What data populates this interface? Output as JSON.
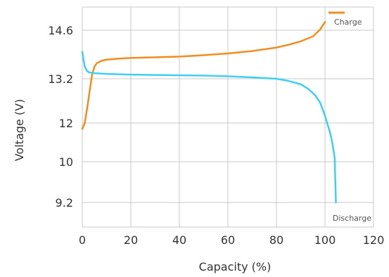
{
  "chart_data": {
    "type": "line",
    "xlabel": "Capacity (%)",
    "ylabel": "Voltage (V)",
    "xlim": [
      0,
      120
    ],
    "x_ticks": [
      0,
      20,
      40,
      60,
      80,
      100,
      120
    ],
    "x_tick_labels": [
      "0",
      "20",
      "40",
      "60",
      "80",
      "100",
      "120"
    ],
    "y_ticks": [
      9.2,
      10,
      12,
      13.2,
      14.6
    ],
    "y_tick_labels": [
      "9.2",
      "10",
      "12",
      "13.2",
      "14.6"
    ],
    "grid": true,
    "series": [
      {
        "name": "Charge",
        "color": "#f28c1e",
        "x": [
          0,
          1,
          2,
          3,
          4,
          5,
          6,
          8,
          10,
          15,
          20,
          30,
          40,
          50,
          60,
          70,
          80,
          85,
          90,
          95,
          98,
          100
        ],
        "y": [
          11.7,
          12.0,
          12.4,
          12.85,
          13.3,
          13.55,
          13.65,
          13.72,
          13.75,
          13.78,
          13.8,
          13.82,
          13.84,
          13.88,
          13.93,
          14.0,
          14.1,
          14.18,
          14.28,
          14.42,
          14.62,
          14.85
        ]
      },
      {
        "name": "Discharge",
        "color": "#3fd0f0",
        "x": [
          0,
          0.5,
          1,
          2,
          3,
          5,
          10,
          20,
          30,
          40,
          50,
          60,
          70,
          80,
          85,
          90,
          93,
          96,
          98,
          100,
          101,
          102,
          103,
          104,
          104.5
        ],
        "y": [
          13.98,
          13.75,
          13.55,
          13.42,
          13.38,
          13.36,
          13.34,
          13.32,
          13.31,
          13.3,
          13.29,
          13.27,
          13.24,
          13.2,
          13.14,
          13.05,
          12.93,
          12.75,
          12.55,
          12.2,
          11.95,
          11.55,
          11.0,
          10.2,
          9.2
        ]
      }
    ],
    "legend": [
      {
        "label": "Charge",
        "position": "top-right"
      },
      {
        "label": "Discharge",
        "position": "bottom-right"
      }
    ]
  }
}
